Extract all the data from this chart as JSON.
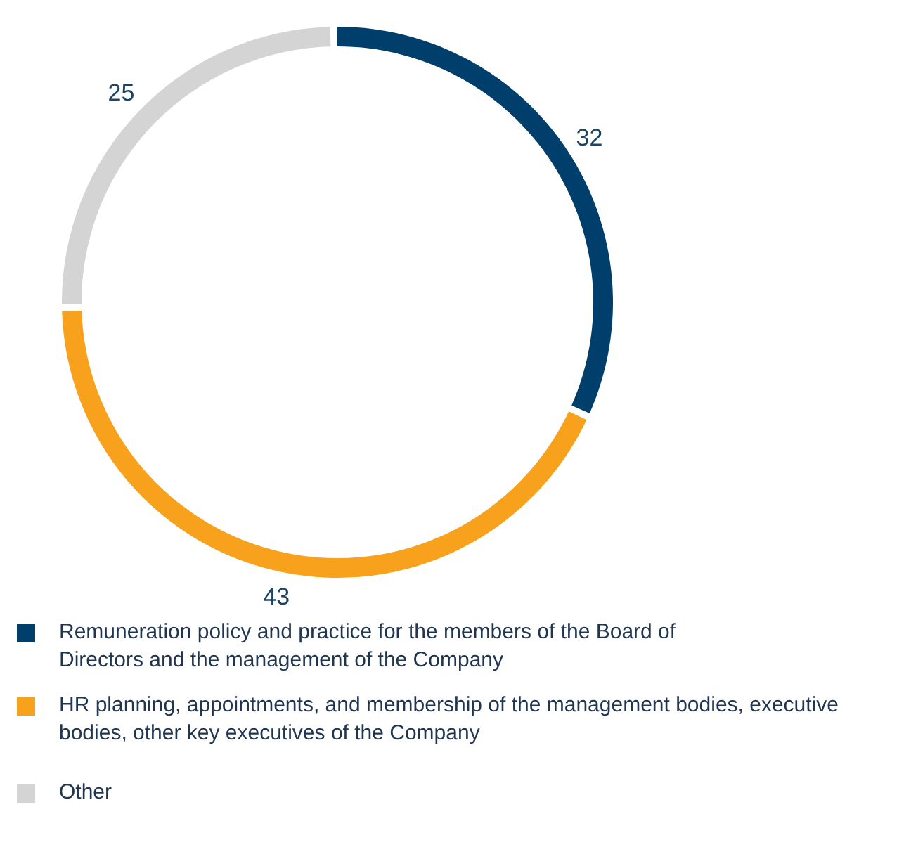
{
  "chart_data": {
    "type": "donut",
    "categories": [
      "Remuneration policy and practice for the members of the Board of Directors and the management of the Company",
      "HR planning, appointments, and membership of the management bodies, executive bodies, other key executives of the Company",
      "Other"
    ],
    "values": [
      32,
      43,
      25
    ],
    "colors": [
      "#003f6b",
      "#f7a11d",
      "#d4d4d4"
    ],
    "data_labels": true,
    "legend": "bottom"
  }
}
